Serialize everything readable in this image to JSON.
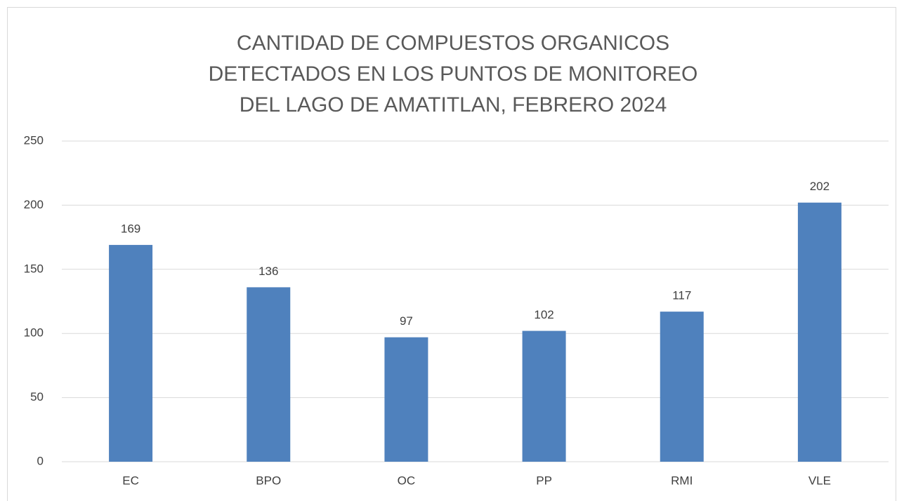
{
  "chart_data": {
    "type": "bar",
    "title": "CANTIDAD DE COMPUESTOS ORGANICOS DETECTADOS EN LOS PUNTOS  DE MONITOREO DEL LAGO DE AMATITLAN, FEBRERO 2024",
    "categories": [
      "EC",
      "BPO",
      "OC",
      "PP",
      "RMI",
      "VLE"
    ],
    "values": [
      169,
      136,
      97,
      102,
      117,
      202
    ],
    "color": "#4f81bd",
    "ylim": [
      0,
      250
    ],
    "yticks": [
      0,
      50,
      100,
      150,
      200,
      250
    ],
    "grid": true
  }
}
